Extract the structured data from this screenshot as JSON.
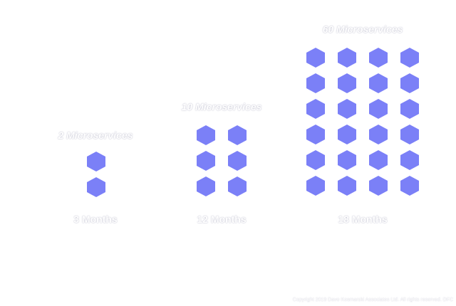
{
  "accent_color": "#7b80f7",
  "icon": "hexagon-icon",
  "groups": [
    {
      "count_label": "2 Microservices",
      "time_label": "3 Months",
      "count": 2,
      "columns": 1
    },
    {
      "count_label": "10 Microservices",
      "time_label": "12 Months",
      "count": 6,
      "columns": 2
    },
    {
      "count_label": "60 Microservices",
      "time_label": "18 Months",
      "count": 24,
      "columns": 4
    }
  ],
  "copyright": "Copyright 2019 Dave Kosmarski Associates Ltd. All rights reserved. DFC"
}
